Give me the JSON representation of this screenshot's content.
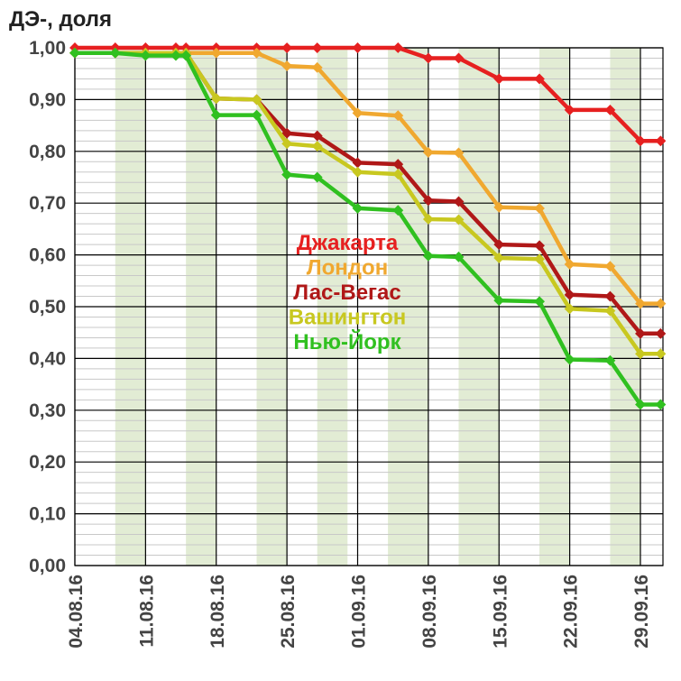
{
  "chart_data": {
    "type": "line",
    "title": "ДЭ-, доля",
    "xlabel": "",
    "ylabel": "",
    "ylim": [
      0,
      1
    ],
    "y_ticks": [
      "0,00",
      "0,10",
      "0,20",
      "0,30",
      "0,40",
      "0,50",
      "0,60",
      "0,70",
      "0,80",
      "0,90",
      "1,00"
    ],
    "x_ticks": [
      "04.08.16",
      "11.08.16",
      "18.08.16",
      "25.08.16",
      "01.09.16",
      "08.09.16",
      "15.09.16",
      "22.09.16",
      "29.09.16"
    ],
    "x_dates": [
      "2016-08-04",
      "2016-08-08",
      "2016-08-11",
      "2016-08-14",
      "2016-08-15",
      "2016-08-18",
      "2016-08-22",
      "2016-08-25",
      "2016-08-28",
      "2016-09-01",
      "2016-09-05",
      "2016-09-08",
      "2016-09-11",
      "2016-09-15",
      "2016-09-19",
      "2016-09-22",
      "2016-09-26",
      "2016-09-29",
      "2016-10-01"
    ],
    "shaded_periods": [
      [
        "2016-08-08",
        "2016-08-11"
      ],
      [
        "2016-08-15",
        "2016-08-18"
      ],
      [
        "2016-08-22",
        "2016-08-25"
      ],
      [
        "2016-08-28",
        "2016-08-31"
      ],
      [
        "2016-09-04",
        "2016-09-08"
      ],
      [
        "2016-09-11",
        "2016-09-15"
      ],
      [
        "2016-09-19",
        "2016-09-22"
      ],
      [
        "2016-09-26",
        "2016-09-29"
      ]
    ],
    "grid": true,
    "legend_position": "center",
    "series": [
      {
        "name": "Джакарта",
        "color": "#e62020",
        "values": [
          1.0,
          1.0,
          1.0,
          1.0,
          1.0,
          1.0,
          1.0,
          1.0,
          1.0,
          1.0,
          1.0,
          0.98,
          0.98,
          0.94,
          0.94,
          0.88,
          0.88,
          0.82,
          0.82
        ]
      },
      {
        "name": "Лондон",
        "color": "#f0a830",
        "values": [
          0.99,
          0.99,
          0.99,
          0.99,
          0.99,
          0.99,
          0.99,
          0.965,
          0.962,
          0.874,
          0.869,
          0.798,
          0.797,
          0.692,
          0.69,
          0.582,
          0.578,
          0.506,
          0.506
        ]
      },
      {
        "name": "Лас-Вегас",
        "color": "#b01818",
        "values": [
          0.99,
          0.99,
          0.99,
          0.99,
          0.99,
          0.902,
          0.9,
          0.835,
          0.83,
          0.778,
          0.775,
          0.705,
          0.703,
          0.62,
          0.618,
          0.523,
          0.52,
          0.448,
          0.448
        ]
      },
      {
        "name": "Вашингтон",
        "color": "#c8c820",
        "values": [
          0.99,
          0.99,
          0.99,
          0.99,
          0.99,
          0.902,
          0.9,
          0.815,
          0.81,
          0.76,
          0.756,
          0.669,
          0.668,
          0.594,
          0.592,
          0.496,
          0.492,
          0.409,
          0.409
        ]
      },
      {
        "name": "Нью-Йорк",
        "color": "#30c020",
        "values": [
          0.99,
          0.99,
          0.985,
          0.985,
          0.985,
          0.87,
          0.87,
          0.755,
          0.75,
          0.69,
          0.686,
          0.598,
          0.596,
          0.512,
          0.51,
          0.398,
          0.396,
          0.311,
          0.311
        ]
      }
    ]
  }
}
